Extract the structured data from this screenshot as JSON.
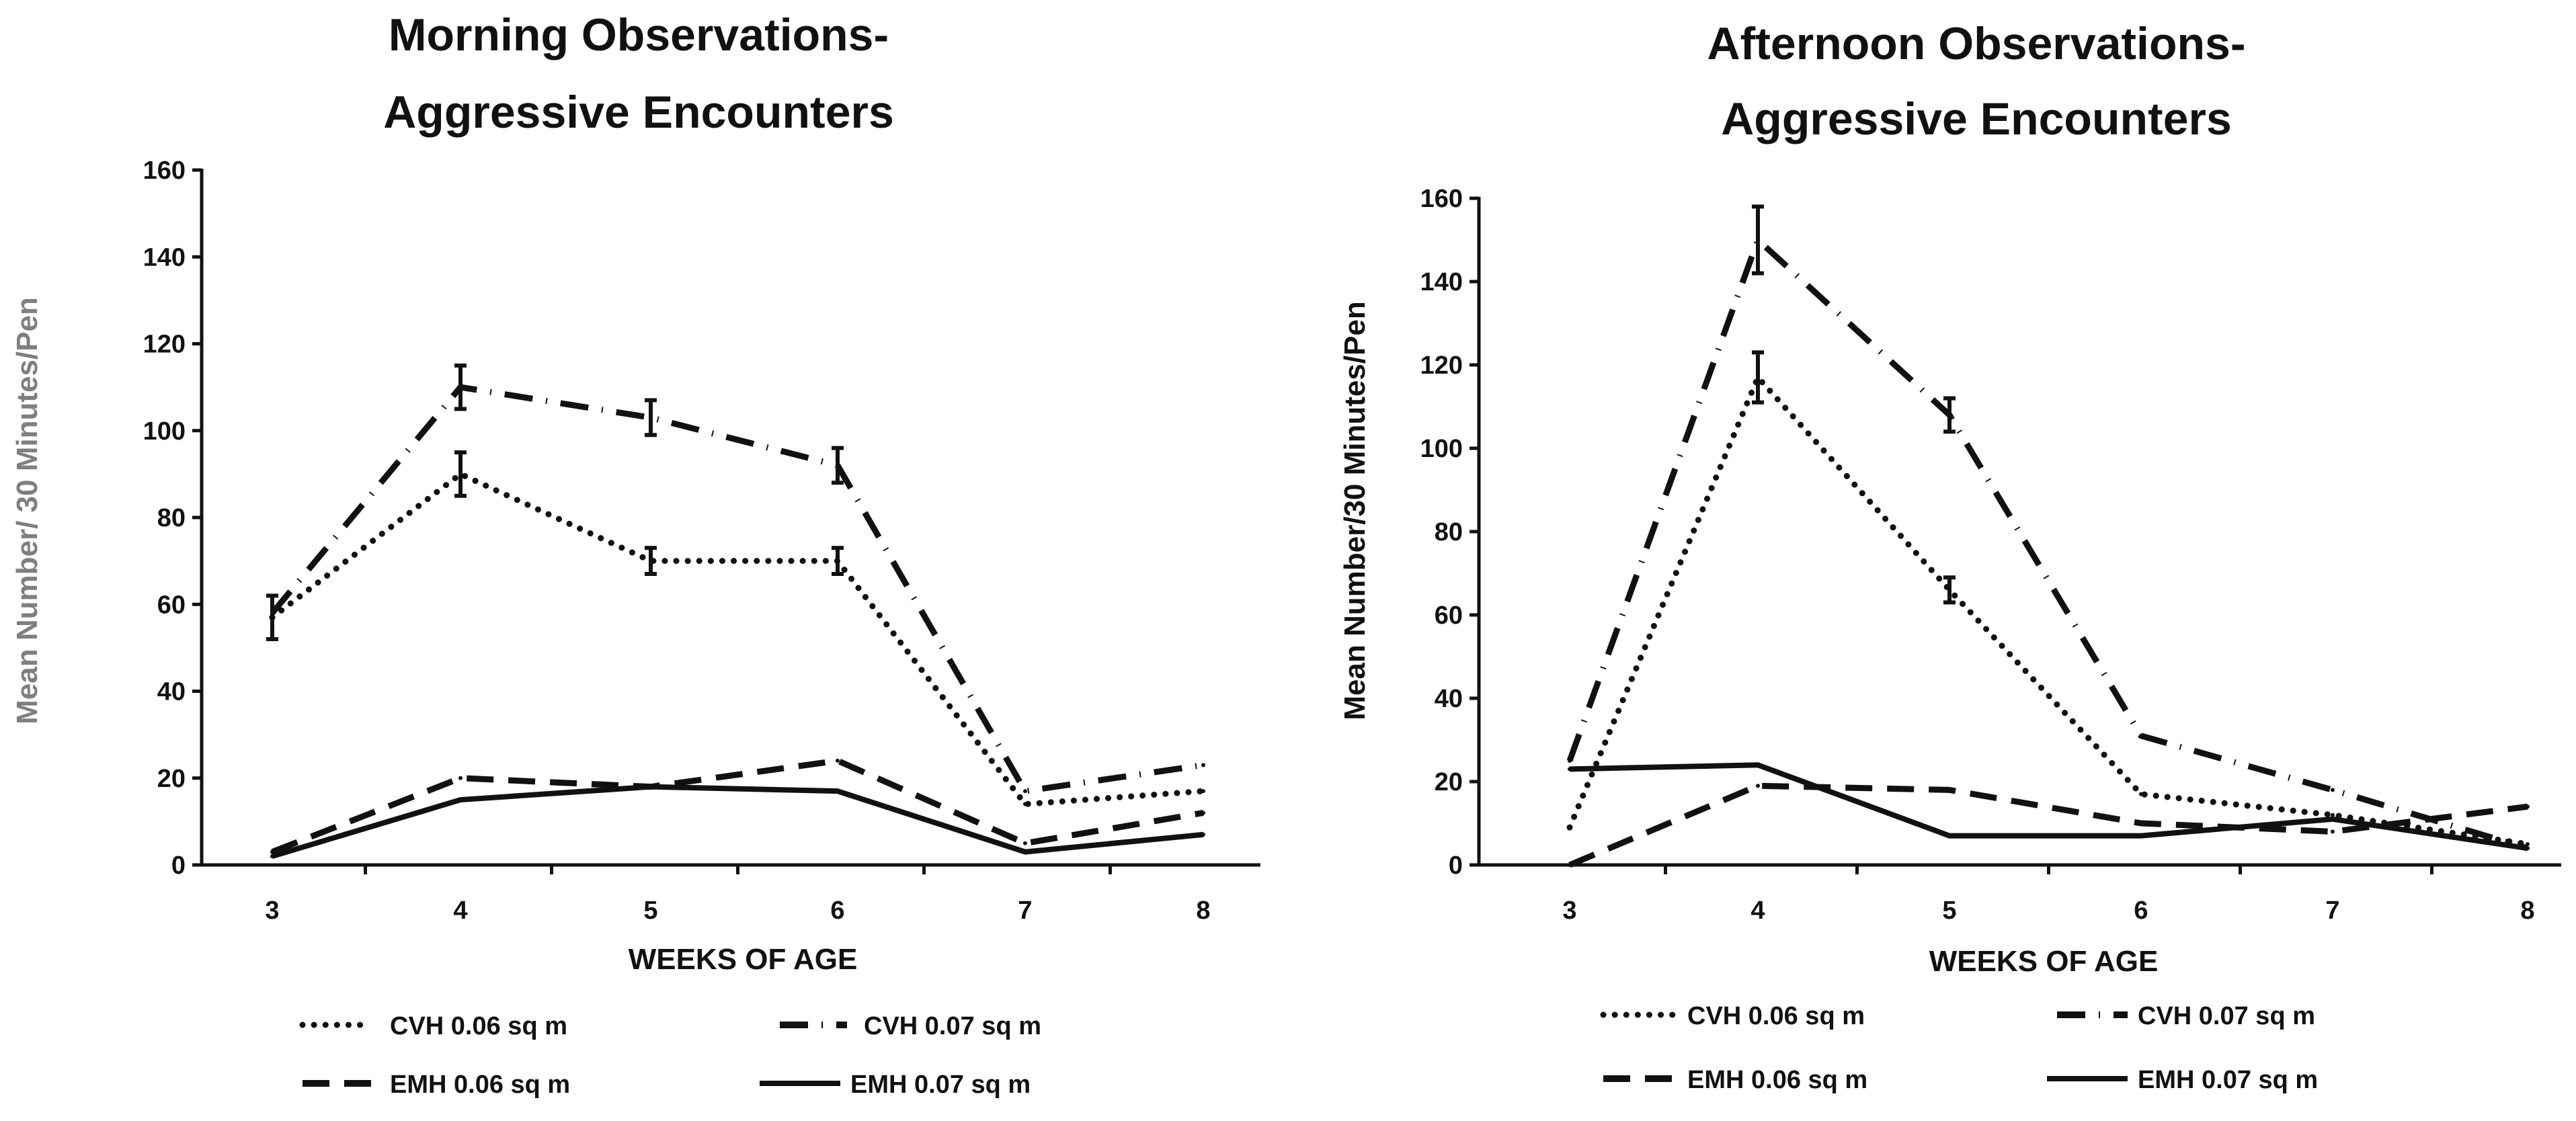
{
  "chart_data": [
    {
      "type": "line",
      "title_lines": [
        "Morning Observations-",
        "Aggressive Encounters"
      ],
      "xlabel": "WEEKS OF AGE",
      "ylabel": "Mean Number/ 30 Minutes/Pen",
      "ylabel_color": "#7f7f7f",
      "x": [
        3,
        4,
        5,
        6,
        7,
        8
      ],
      "ylim": [
        0,
        160
      ],
      "yticks": [
        0,
        20,
        40,
        60,
        80,
        100,
        120,
        140,
        160
      ],
      "series": [
        {
          "name": "CVH  0.06 sq m",
          "style": "dotted",
          "values": [
            57,
            90,
            70,
            70,
            14,
            17
          ],
          "errors": [
            5,
            5,
            3,
            3,
            0,
            0
          ]
        },
        {
          "name": "CVH  0.07 sq m",
          "style": "dashdot",
          "values": [
            58,
            110,
            103,
            92,
            17,
            23
          ],
          "errors": [
            0,
            5,
            4,
            4,
            0,
            0
          ]
        },
        {
          "name": "EMH  0.06 sq m",
          "style": "dashed",
          "values": [
            3,
            20,
            18,
            24,
            5,
            12
          ],
          "errors": [
            0,
            0,
            0,
            0,
            0,
            0
          ]
        },
        {
          "name": "EMH  0.07 sq m",
          "style": "solid",
          "values": [
            2,
            15,
            18,
            17,
            3,
            7
          ],
          "errors": [
            0,
            0,
            0,
            0,
            0,
            0
          ]
        }
      ],
      "legend_labels": [
        "CVH   0.06 sq m",
        "CVH  0.07 sq m",
        "EMH   0.06 sq m",
        "EMH   0.07 sq m"
      ]
    },
    {
      "type": "line",
      "title_lines": [
        "Afternoon Observations-",
        "Aggressive Encounters"
      ],
      "xlabel": "WEEKS OF AGE",
      "ylabel": "Mean Number/30 Minutes/Pen",
      "ylabel_color": "#111111",
      "x": [
        3,
        4,
        5,
        6,
        7,
        8
      ],
      "ylim": [
        0,
        160
      ],
      "yticks": [
        0,
        20,
        40,
        60,
        80,
        100,
        120,
        140,
        160
      ],
      "series": [
        {
          "name": "CVH  0.06 sq m",
          "style": "dotted",
          "values": [
            9,
            117,
            66,
            17,
            12,
            5
          ],
          "errors": [
            0,
            6,
            3,
            0,
            0,
            0
          ]
        },
        {
          "name": "CVH  0.07 sq m",
          "style": "dashdot",
          "values": [
            25,
            150,
            108,
            31,
            18,
            4
          ],
          "errors": [
            0,
            8,
            4,
            0,
            0,
            0
          ]
        },
        {
          "name": "EMH  0.06 sq m",
          "style": "dashed",
          "values": [
            0,
            19,
            18,
            10,
            8,
            14
          ],
          "errors": [
            0,
            0,
            0,
            0,
            0,
            0
          ]
        },
        {
          "name": "EMH  0.07 sq m",
          "style": "solid",
          "values": [
            23,
            24,
            7,
            7,
            11,
            4
          ],
          "errors": [
            0,
            0,
            0,
            0,
            0,
            0
          ]
        }
      ],
      "legend_labels": [
        "CVH   0.06 sq m",
        "CVH   0.07 sq m",
        "EMH   0.06 sq m",
        "EMH   0.07 sq m"
      ]
    }
  ]
}
